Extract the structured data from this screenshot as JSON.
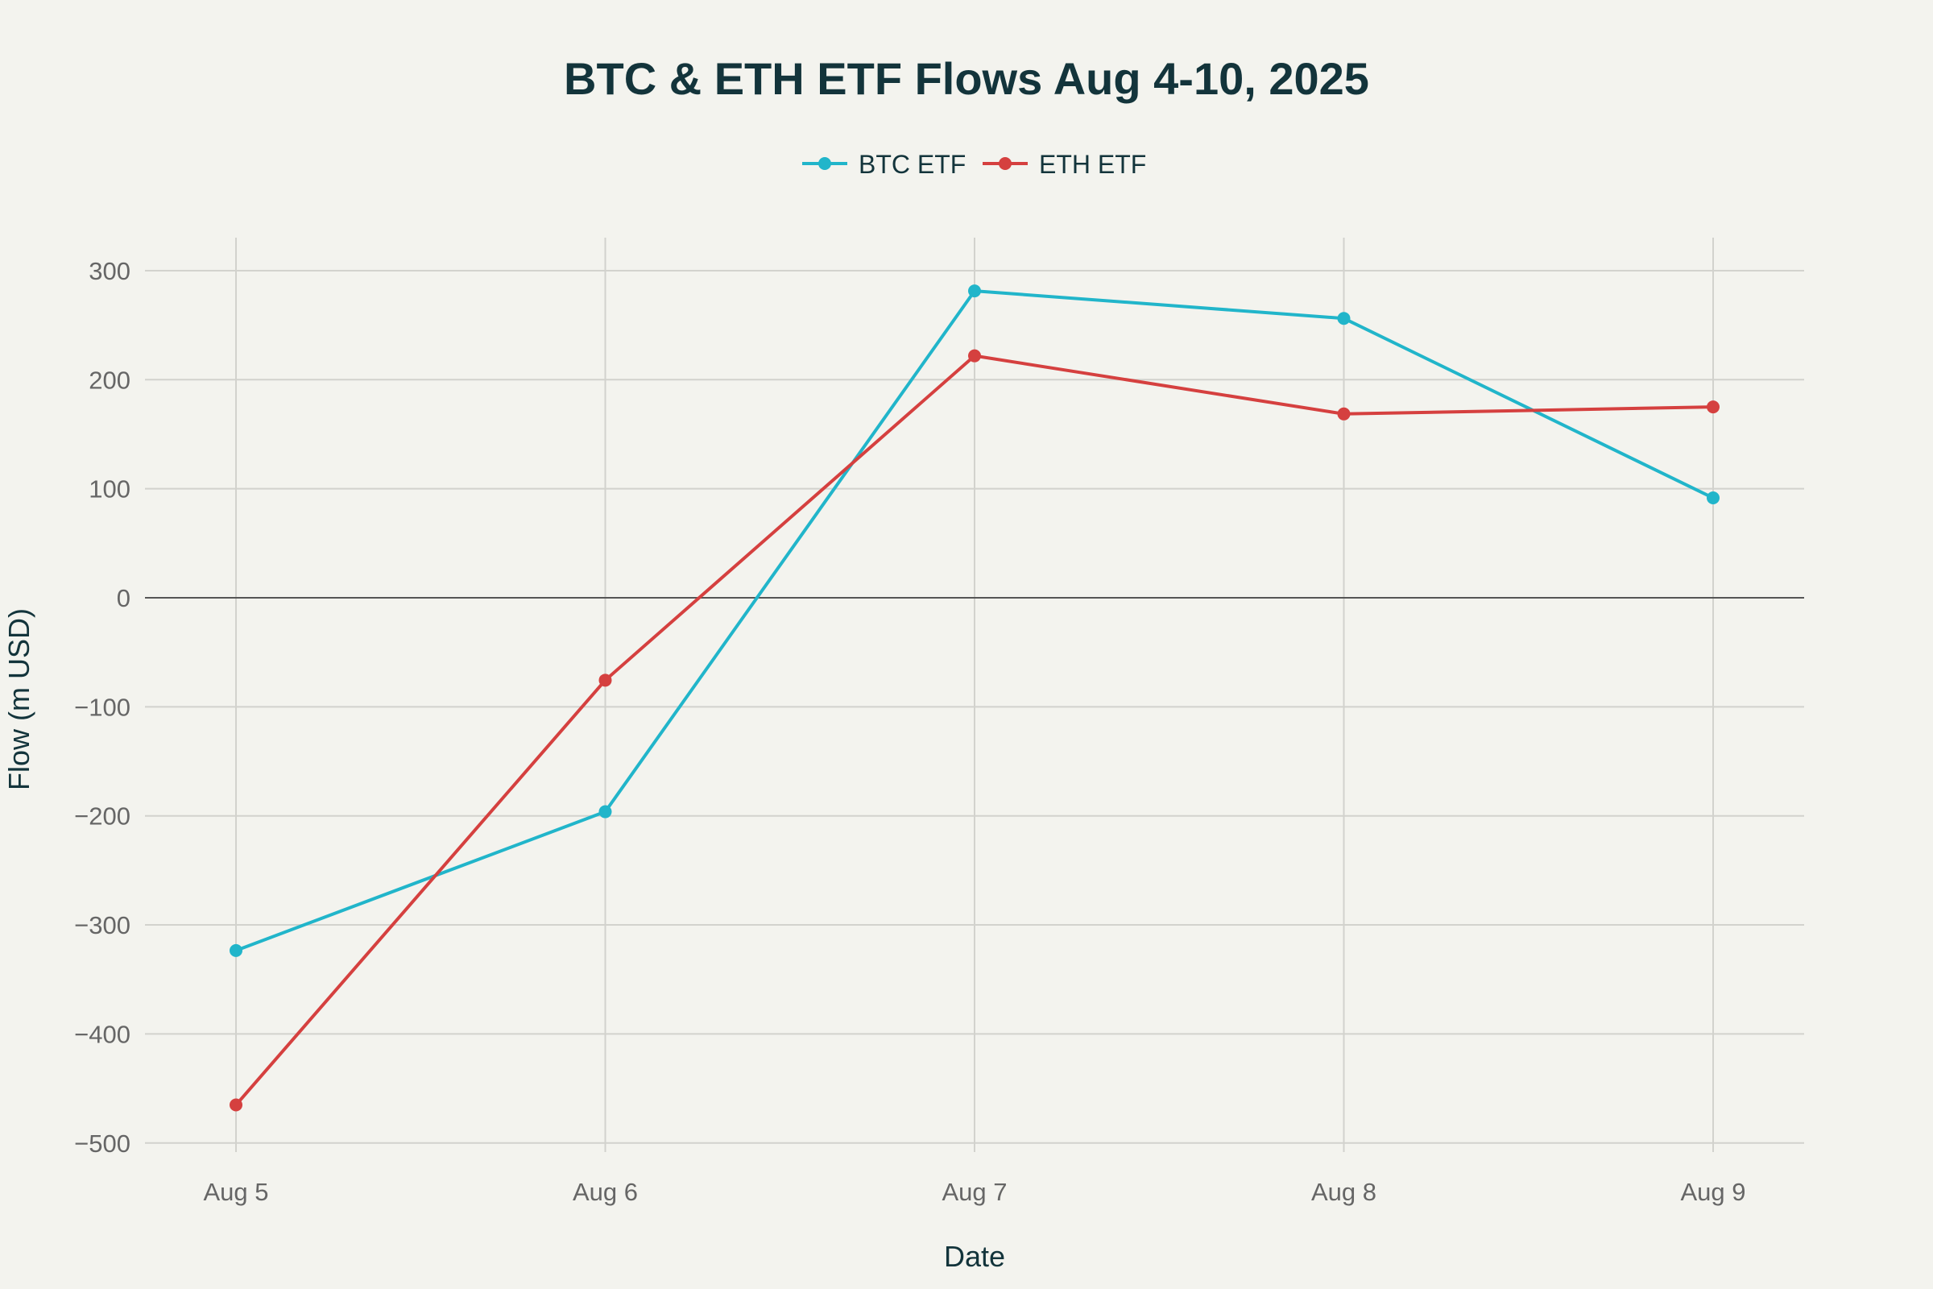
{
  "chart_data": {
    "type": "line",
    "title": "BTC & ETH ETF Flows Aug 4-10, 2025",
    "xlabel": "Date",
    "ylabel": "Flow (m USD)",
    "categories": [
      "Aug 5",
      "Aug 6",
      "Aug 7",
      "Aug 8",
      "Aug 9"
    ],
    "ylim": [
      -520,
      330
    ],
    "yticks": [
      300,
      200,
      100,
      0,
      -100,
      -200,
      -300,
      -400,
      -500
    ],
    "ytick_labels": [
      "300",
      "200",
      "100",
      "0",
      "−100",
      "−200",
      "−300",
      "−400",
      "−500"
    ],
    "grid": true,
    "legend_position": "top-center",
    "series": [
      {
        "name": "BTC ETF",
        "color": "#21b5ca",
        "values": [
          -323.5,
          -196.2,
          281.4,
          256.2,
          91.6
        ]
      },
      {
        "name": "ETH ETF",
        "color": "#d5403f",
        "values": [
          -465.1,
          -75.6,
          221.9,
          168.6,
          175.0
        ]
      }
    ]
  }
}
